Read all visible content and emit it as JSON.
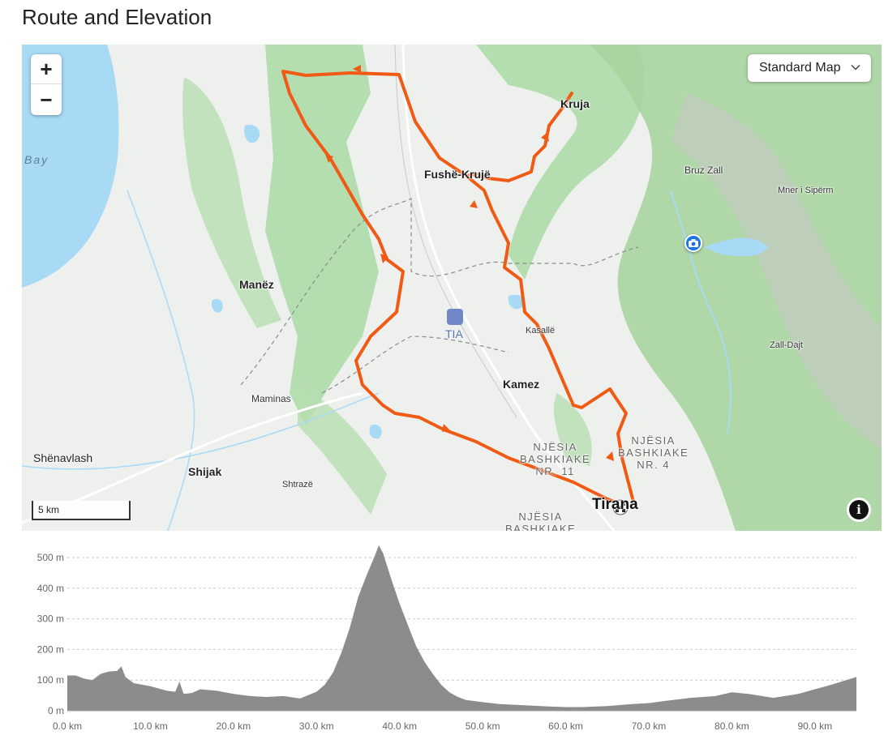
{
  "page": {
    "title": "Route and Elevation"
  },
  "map": {
    "zoom_in": "+",
    "zoom_out": "−",
    "map_type": "Standard Map",
    "scale": "5 km",
    "info": "i",
    "labels": {
      "kruja": "Kruja",
      "fushe_kruje": "Fushë-Krujë",
      "bruz_zall": "Bruz Zall",
      "mner": "Mner i Sipërm",
      "bay": "Bay",
      "manez": "Manëz",
      "tia": "TIA",
      "kasalle": "Kasallë",
      "zall_dajt": "Zall-Dajt",
      "kamez": "Kamez",
      "maminas": "Maminas",
      "njesia_11": "NJËSIA\nBASHKIAKE\nNR. 11",
      "njesia_4": "NJËSIA\nBASHKIAKE\nNR. 4",
      "njesia_bottom": "NJËSIA\nBASHKIAKE",
      "shenavlash": "Shënavlash",
      "shijak": "Shijak",
      "shtraze": "Shtrazë",
      "tirana": "Tirana"
    },
    "colors": {
      "route": "#f05a14",
      "water": "#a8daf5",
      "forest": "#9fd39a",
      "land": "#eef0ee"
    }
  },
  "elevation": {
    "y_ticks": [
      "0 m",
      "100 m",
      "200 m",
      "300 m",
      "400 m",
      "500 m"
    ],
    "x_ticks": [
      "0.0 km",
      "10.0 km",
      "20.0 km",
      "30.0 km",
      "40.0 km",
      "50.0 km",
      "60.0 km",
      "70.0 km",
      "80.0 km",
      "90.0 km"
    ],
    "fill_color": "#8c8c8c",
    "chart_data": {
      "type": "area",
      "xlabel": "",
      "ylabel": "",
      "xlim": [
        0,
        95
      ],
      "ylim": [
        0,
        500
      ],
      "x": [
        0,
        1,
        2,
        3,
        4,
        5,
        6,
        6.5,
        7,
        8,
        10,
        12,
        13,
        13.5,
        14,
        15,
        16,
        18,
        20,
        22,
        24,
        26,
        28,
        30,
        31,
        32,
        33,
        34,
        35,
        36,
        37,
        37.5,
        38,
        39,
        40,
        41,
        42,
        43,
        44,
        45,
        46,
        47,
        48,
        50,
        52,
        55,
        58,
        60,
        62,
        65,
        68,
        70,
        72,
        75,
        78,
        80,
        82,
        85,
        88,
        90,
        92,
        95
      ],
      "y": [
        115,
        115,
        105,
        100,
        120,
        128,
        130,
        145,
        110,
        90,
        80,
        65,
        62,
        95,
        55,
        58,
        70,
        65,
        55,
        48,
        45,
        48,
        40,
        62,
        85,
        125,
        190,
        270,
        370,
        440,
        505,
        540,
        515,
        430,
        350,
        280,
        210,
        160,
        120,
        85,
        60,
        45,
        35,
        28,
        22,
        18,
        14,
        12,
        12,
        15,
        22,
        25,
        32,
        42,
        48,
        60,
        55,
        42,
        55,
        70,
        85,
        110
      ]
    }
  }
}
